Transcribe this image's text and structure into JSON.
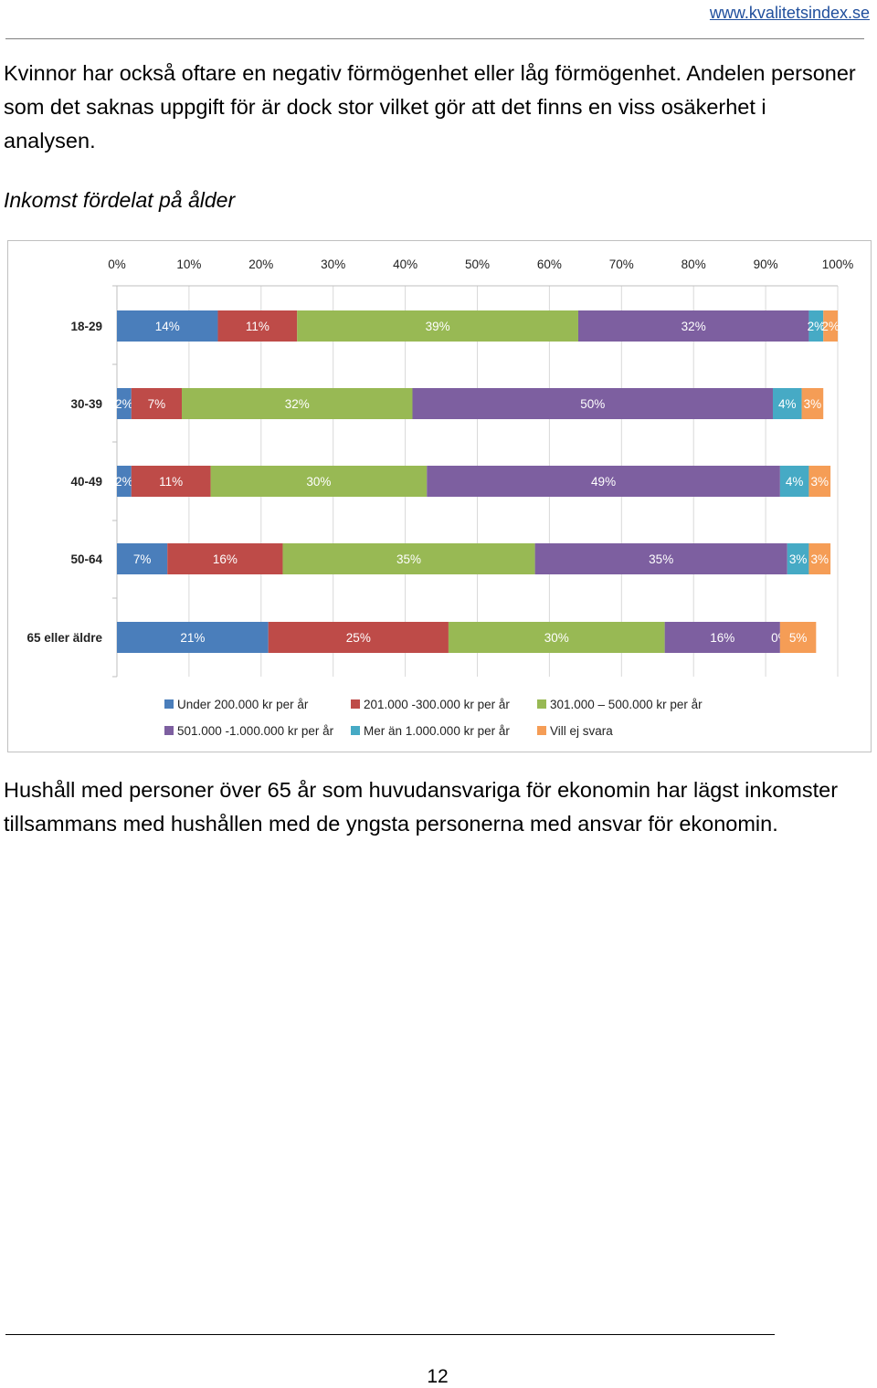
{
  "header": {
    "site_url": "www.kvalitetsindex.se"
  },
  "intro_text": "Kvinnor har också oftare en negativ förmögenhet eller låg förmögenhet. Andelen personer som det saknas uppgift för är dock stor vilket gör att det finns en viss osäkerhet i analysen.",
  "chart_title": "Inkomst fördelat på ålder",
  "colors": {
    "under_200": "#4a7ebb",
    "201_300": "#be4b48",
    "301_500": "#98b954",
    "501_1000": "#7d5fa0",
    "over_1000": "#46aac5",
    "no_answer": "#f59d56"
  },
  "chart_data": {
    "type": "bar",
    "orientation": "horizontal",
    "stacked": true,
    "title": "Inkomst fördelat på ålder",
    "xlim": [
      0,
      100
    ],
    "x_ticks": [
      "0%",
      "10%",
      "20%",
      "30%",
      "40%",
      "50%",
      "60%",
      "70%",
      "80%",
      "90%",
      "100%"
    ],
    "x_axis_position": "top",
    "categories": [
      "18-29",
      "30-39",
      "40-49",
      "50-64",
      "65 eller äldre"
    ],
    "series": [
      {
        "name": "Under 200.000 kr per år",
        "color": "#4a7ebb",
        "values": [
          14,
          2,
          2,
          7,
          21
        ]
      },
      {
        "name": "201.000 -300.000 kr per år",
        "color": "#be4b48",
        "values": [
          11,
          7,
          11,
          16,
          25
        ]
      },
      {
        "name": "301.000 – 500.000 kr per år",
        "color": "#98b954",
        "values": [
          39,
          32,
          30,
          35,
          30
        ]
      },
      {
        "name": "501.000 -1.000.000 kr per år",
        "color": "#7d5fa0",
        "values": [
          32,
          50,
          49,
          35,
          16
        ]
      },
      {
        "name": "Mer än 1.000.000 kr per år",
        "color": "#46aac5",
        "values": [
          2,
          4,
          4,
          3,
          0
        ]
      },
      {
        "name": "Vill ej svara",
        "color": "#f59d56",
        "values": [
          2,
          3,
          3,
          3,
          5
        ]
      }
    ],
    "legend_position": "bottom",
    "grid": true
  },
  "conclusion_text": "Hushåll med personer över 65 år som huvudansvariga för ekonomin har lägst inkomster tillsammans med hushållen med de yngsta personerna med ansvar för ekonomin.",
  "footer": {
    "page_number": "12"
  }
}
